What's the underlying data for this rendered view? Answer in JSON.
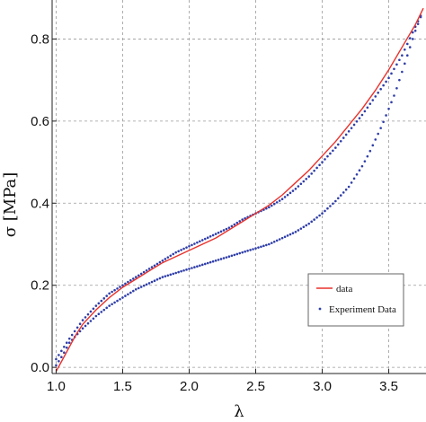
{
  "chart_data": {
    "type": "scatter",
    "title": "",
    "xlabel": "λ",
    "ylabel": "σ [MPa]",
    "xlim": [
      0.97,
      3.78
    ],
    "ylim": [
      -0.015,
      0.895
    ],
    "xticks": [
      1.0,
      1.5,
      2.0,
      2.5,
      3.0,
      3.5
    ],
    "xtick_labels": [
      "1.0",
      "1.5",
      "2.0",
      "2.5",
      "3.0",
      "3.5"
    ],
    "yticks": [
      0.0,
      0.2,
      0.4,
      0.6,
      0.8
    ],
    "ytick_labels": [
      "0.0",
      "0.2",
      "0.4",
      "0.6",
      "0.8"
    ],
    "grid": true,
    "legend": {
      "placement": "lower-right",
      "entries": [
        {
          "label": "data",
          "style": "line",
          "color": "#e8322c"
        },
        {
          "label": "Experiment Data",
          "style": "dots",
          "color": "#2f3ea8"
        }
      ]
    },
    "series": [
      {
        "name": "data",
        "style": "line",
        "color": "#e8322c",
        "x": [
          1.0,
          1.05,
          1.1,
          1.15,
          1.2,
          1.3,
          1.4,
          1.5,
          1.6,
          1.7,
          1.8,
          1.9,
          2.0,
          2.1,
          2.2,
          2.3,
          2.4,
          2.5,
          2.6,
          2.7,
          2.8,
          2.9,
          3.0,
          3.1,
          3.2,
          3.3,
          3.4,
          3.5,
          3.6,
          3.7,
          3.76
        ],
        "y": [
          -0.01,
          0.02,
          0.05,
          0.08,
          0.105,
          0.14,
          0.17,
          0.195,
          0.215,
          0.235,
          0.255,
          0.27,
          0.285,
          0.3,
          0.315,
          0.335,
          0.355,
          0.375,
          0.395,
          0.42,
          0.45,
          0.48,
          0.515,
          0.55,
          0.59,
          0.63,
          0.675,
          0.725,
          0.78,
          0.835,
          0.875
        ]
      },
      {
        "name": "Experiment Data",
        "style": "dots",
        "color": "#2f3ea8",
        "loading": {
          "x": [
            1.0,
            1.1,
            1.2,
            1.3,
            1.4,
            1.5,
            1.6,
            1.7,
            1.8,
            1.9,
            2.0,
            2.1,
            2.2,
            2.3,
            2.4,
            2.5,
            2.6,
            2.7,
            2.8,
            2.9,
            3.0,
            3.1,
            3.2,
            3.3,
            3.4,
            3.5,
            3.6,
            3.7,
            3.76
          ],
          "y": [
            0.02,
            0.07,
            0.115,
            0.15,
            0.18,
            0.2,
            0.22,
            0.24,
            0.26,
            0.28,
            0.295,
            0.31,
            0.325,
            0.34,
            0.36,
            0.375,
            0.39,
            0.41,
            0.435,
            0.465,
            0.5,
            0.535,
            0.575,
            0.615,
            0.66,
            0.705,
            0.76,
            0.83,
            0.87
          ]
        },
        "unloading": {
          "x": [
            3.76,
            3.7,
            3.65,
            3.6,
            3.55,
            3.5,
            3.45,
            3.4,
            3.35,
            3.3,
            3.2,
            3.1,
            3.0,
            2.9,
            2.8,
            2.7,
            2.6,
            2.5,
            2.4,
            2.3,
            2.2,
            2.1,
            2.0,
            1.9,
            1.8,
            1.7,
            1.6,
            1.5,
            1.4,
            1.3,
            1.2,
            1.1,
            1.05,
            1.0
          ],
          "y": [
            0.87,
            0.82,
            0.77,
            0.72,
            0.67,
            0.63,
            0.59,
            0.555,
            0.52,
            0.49,
            0.44,
            0.405,
            0.375,
            0.35,
            0.33,
            0.315,
            0.3,
            0.29,
            0.28,
            0.27,
            0.26,
            0.25,
            0.24,
            0.23,
            0.22,
            0.205,
            0.19,
            0.17,
            0.15,
            0.125,
            0.095,
            0.06,
            0.03,
            0.005
          ]
        }
      }
    ]
  }
}
